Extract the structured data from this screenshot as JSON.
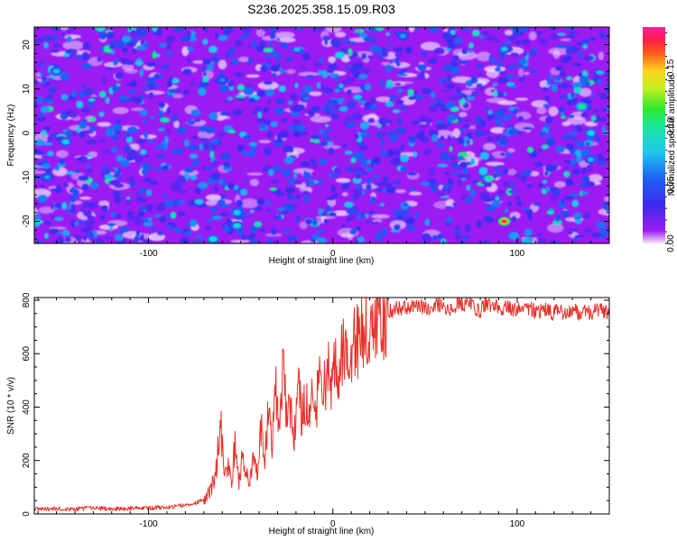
{
  "figure_title": "S236.2025.358.15.09.R03",
  "colors": {
    "line": "#e8312a",
    "axis": "#000000",
    "spectrogram_background": "#9b1cf3"
  },
  "chart_data": [
    {
      "type": "heatmap",
      "title": "S236.2025.358.15.09.R03",
      "xlabel": "Height of straight line (km)",
      "ylabel": "Frequency (Hz)",
      "xlim": [
        -162,
        150
      ],
      "ylim": [
        -25,
        24
      ],
      "xticks": [
        -100,
        0,
        100
      ],
      "yticks": [
        -20,
        -10,
        0,
        10,
        20
      ],
      "grid": false,
      "colorbar": {
        "label": "Normalized spectral amplitude",
        "range": [
          0,
          0.185
        ],
        "ticks": [
          0.0,
          0.05,
          0.1,
          0.15
        ],
        "tick_labels": [
          "0.00",
          "0.05",
          "0.10",
          "0.15"
        ],
        "colormap": "rainbow (purple-blue-cyan-green-yellow-red-magenta)"
      },
      "hotspots": [
        {
          "x": -65,
          "y": -24,
          "value": 0.095
        },
        {
          "x": -52,
          "y": -21,
          "value": 0.09
        },
        {
          "x": -52,
          "y": -18,
          "value": 0.085
        },
        {
          "x": 93,
          "y": -20,
          "value": 0.18
        },
        {
          "x": 135,
          "y": 6,
          "value": 0.11
        },
        {
          "x": 140,
          "y": 0,
          "value": 0.09
        },
        {
          "x": -150,
          "y": 14,
          "value": 0.08
        },
        {
          "x": -145,
          "y": -2,
          "value": 0.085
        },
        {
          "x": 93,
          "y": 19,
          "value": 0.08
        },
        {
          "x": 140,
          "y": -6,
          "value": 0.075
        },
        {
          "x": -155,
          "y": -10,
          "value": 0.07
        },
        {
          "x": 38,
          "y": 22,
          "value": 0.07
        },
        {
          "x": -60,
          "y": 12,
          "value": 0.065
        }
      ]
    },
    {
      "type": "line",
      "title": "",
      "xlabel": "Height of straight line (km)",
      "ylabel": "SNR (10 * v/v)",
      "xlim": [
        -162,
        150
      ],
      "ylim": [
        0,
        810
      ],
      "xticks": [
        -100,
        0,
        100
      ],
      "yticks": [
        0,
        200,
        400,
        600,
        800
      ],
      "grid": false,
      "series": [
        {
          "x": [
            -162,
            -150,
            -140,
            -130,
            -120,
            -110,
            -100,
            -90,
            -80,
            -75,
            -70,
            -66,
            -63,
            -61,
            -59,
            -57,
            -55,
            -53,
            -51,
            -49,
            -47,
            -45,
            -43,
            -41,
            -39,
            -37,
            -35,
            -33,
            -31,
            -29,
            -27,
            -25,
            -23,
            -21,
            -19,
            -17,
            -15,
            -13,
            -11,
            -9,
            -7,
            -5,
            -3,
            -1,
            1,
            3,
            5,
            7,
            9,
            11,
            13,
            15,
            17,
            19,
            21,
            23,
            25,
            27,
            29,
            31,
            33,
            35,
            38,
            41,
            44,
            47,
            50,
            53,
            56,
            59,
            62,
            65,
            68,
            71,
            74,
            77,
            80,
            83,
            86,
            89,
            92,
            95,
            98,
            101,
            104,
            107,
            110,
            113,
            116,
            119,
            122,
            125,
            128,
            131,
            134,
            137,
            140,
            143,
            146,
            150
          ],
          "y": [
            18,
            20,
            18,
            22,
            19,
            21,
            22,
            25,
            32,
            40,
            55,
            90,
            170,
            375,
            110,
            200,
            120,
            260,
            100,
            230,
            150,
            120,
            210,
            160,
            320,
            190,
            400,
            240,
            460,
            270,
            580,
            330,
            420,
            300,
            520,
            360,
            430,
            380,
            470,
            410,
            500,
            460,
            540,
            500,
            560,
            540,
            600,
            580,
            630,
            620,
            650,
            670,
            680,
            700,
            710,
            720,
            735,
            745,
            755,
            760,
            765,
            770,
            772,
            775,
            778,
            780,
            770,
            760,
            790,
            775,
            770,
            760,
            795,
            780,
            800,
            770,
            760,
            790,
            775,
            780,
            770,
            780,
            760,
            765,
            760,
            770,
            755,
            760,
            765,
            750,
            760,
            755,
            760,
            765,
            750,
            760,
            755,
            760,
            765,
            750
          ]
        }
      ]
    }
  ]
}
